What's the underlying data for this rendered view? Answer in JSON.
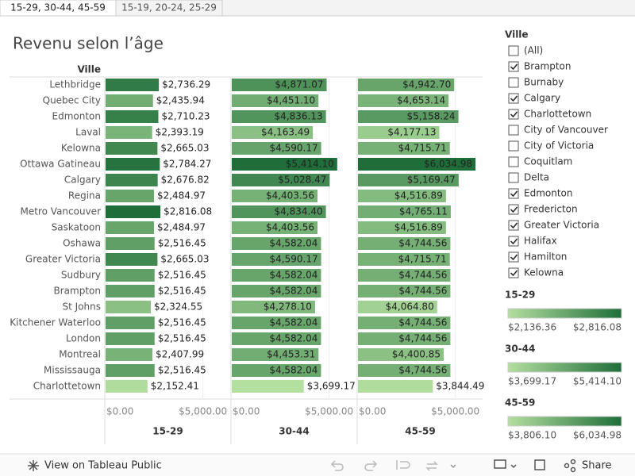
{
  "tabs": [
    {
      "label": "15-29, 30-44, 45-59",
      "active": true
    },
    {
      "label": "15-19, 20-24, 25-29",
      "active": false
    }
  ],
  "chart_data": {
    "type": "bar",
    "orientation": "horizontal",
    "title": "Revenu selon l’âge",
    "category_axis_title": "Ville",
    "categories": [
      "Lethbridge",
      "Quebec City",
      "Edmonton",
      "Laval",
      "Kelowna",
      "Ottawa Gatineau",
      "Calgary",
      "Regina",
      "Metro Vancouver",
      "Saskatoon",
      "Oshawa",
      "Greater Victoria",
      "Sudbury",
      "Brampton",
      "St Johns",
      "Kitchener Waterloo",
      "London",
      "Montreal",
      "Mississauga",
      "Charlottetown"
    ],
    "color_range": [
      "#b3df9f",
      "#1f6e3a"
    ],
    "xlim": [
      0,
      6400
    ],
    "xticks": [
      {
        "value": 0,
        "label": "$0.00"
      },
      {
        "value": 5000,
        "label": "$5,000.00"
      }
    ],
    "grid": true,
    "series": [
      {
        "name": "15-29",
        "values": [
          2736.29,
          2435.94,
          2710.23,
          2393.19,
          2665.03,
          2784.27,
          2676.82,
          2484.97,
          2816.08,
          2484.97,
          2516.45,
          2665.03,
          2516.45,
          2516.45,
          2324.55,
          2516.45,
          2516.45,
          2407.99,
          2516.45,
          2152.41
        ],
        "value_labels": [
          "$2,736.29",
          "$2,435.94",
          "$2,710.23",
          "$2,393.19",
          "$2,665.03",
          "$2,784.27",
          "$2,676.82",
          "$2,484.97",
          "$2,816.08",
          "$2,484.97",
          "$2,516.45",
          "$2,665.03",
          "$2,516.45",
          "$2,516.45",
          "$2,324.55",
          "$2,516.45",
          "$2,516.45",
          "$2,407.99",
          "$2,516.45",
          "$2,152.41"
        ],
        "color_scale": {
          "min": {
            "value": 2136.36,
            "label": "$2,136.36"
          },
          "max": {
            "value": 2816.08,
            "label": "$2,816.08"
          }
        }
      },
      {
        "name": "30-44",
        "values": [
          4871.07,
          4451.1,
          4836.13,
          4163.49,
          4590.17,
          5414.1,
          5028.47,
          4403.56,
          4834.4,
          4403.56,
          4582.04,
          4590.17,
          4582.04,
          4582.04,
          4278.1,
          4582.04,
          4582.04,
          4453.31,
          4582.04,
          3699.17
        ],
        "value_labels": [
          "$4,871.07",
          "$4,451.10",
          "$4,836.13",
          "$4,163.49",
          "$4,590.17",
          "$5,414.10",
          "$5,028.47",
          "$4,403.56",
          "$4,834.40",
          "$4,403.56",
          "$4,582.04",
          "$4,590.17",
          "$4,582.04",
          "$4,582.04",
          "$4,278.10",
          "$4,582.04",
          "$4,582.04",
          "$4,453.31",
          "$4,582.04",
          "$3,699.17"
        ],
        "color_scale": {
          "min": {
            "value": 3699.17,
            "label": "$3,699.17"
          },
          "max": {
            "value": 5414.1,
            "label": "$5,414.10"
          }
        }
      },
      {
        "name": "45-59",
        "values": [
          4942.7,
          4653.14,
          5158.24,
          4177.13,
          4715.71,
          6034.98,
          5169.47,
          4516.89,
          4765.11,
          4516.89,
          4744.56,
          4715.71,
          4744.56,
          4744.56,
          4064.8,
          4744.56,
          4744.56,
          4400.85,
          4744.56,
          3844.49
        ],
        "value_labels": [
          "$4,942.70",
          "$4,653.14",
          "$5,158.24",
          "$4,177.13",
          "$4,715.71",
          "$6,034.98",
          "$5,169.47",
          "$4,516.89",
          "$4,765.11",
          "$4,516.89",
          "$4,744.56",
          "$4,715.71",
          "$4,744.56",
          "$4,744.56",
          "$4,064.80",
          "$4,744.56",
          "$4,744.56",
          "$4,400.85",
          "$4,744.56",
          "$3,844.49"
        ],
        "color_scale": {
          "min": {
            "value": 3806.1,
            "label": "$3,806.10"
          },
          "max": {
            "value": 6034.98,
            "label": "$6,034.98"
          }
        }
      }
    ]
  },
  "filter": {
    "title": "Ville",
    "items": [
      {
        "label": "(All)",
        "checked": false
      },
      {
        "label": "Brampton",
        "checked": true
      },
      {
        "label": "Burnaby",
        "checked": false
      },
      {
        "label": "Calgary",
        "checked": true
      },
      {
        "label": "Charlottetown",
        "checked": true
      },
      {
        "label": "City of Vancouver",
        "checked": false
      },
      {
        "label": "City of Victoria",
        "checked": false
      },
      {
        "label": "Coquitlam",
        "checked": false
      },
      {
        "label": "Delta",
        "checked": false
      },
      {
        "label": "Edmonton",
        "checked": true
      },
      {
        "label": "Fredericton",
        "checked": true
      },
      {
        "label": "Greater Victoria",
        "checked": true
      },
      {
        "label": "Halifax",
        "checked": true
      },
      {
        "label": "Hamilton",
        "checked": true
      },
      {
        "label": "Kelowna",
        "checked": true
      }
    ]
  },
  "footer": {
    "view_link": "View on Tableau Public",
    "share": "Share"
  }
}
